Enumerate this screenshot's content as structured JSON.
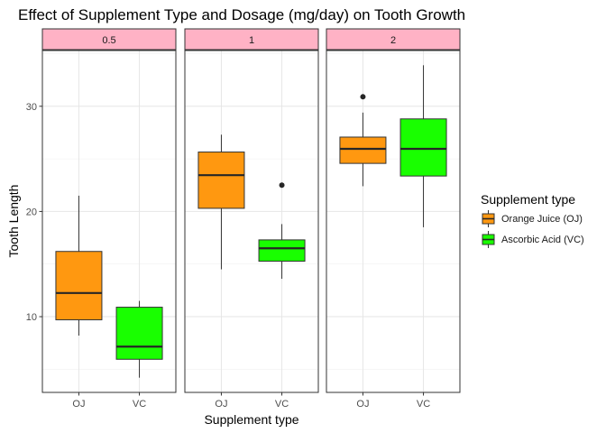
{
  "chart_data": {
    "type": "boxplot",
    "title": "Effect of Supplement Type and Dosage (mg/day) on Tooth Growth",
    "xlabel": "Supplement type",
    "ylabel": "Tooth Length",
    "facet_labels": [
      "0.5",
      "1",
      "2"
    ],
    "categories": [
      "OJ",
      "VC"
    ],
    "y_ticks": [
      10,
      20,
      30
    ],
    "ylim": [
      2.8,
      35.3
    ],
    "grid": true,
    "legend": {
      "title": "Supplement type",
      "placement": "right",
      "entries": [
        "Orange Juice (OJ)",
        "Ascorbic Acid (VC)"
      ]
    },
    "colors": {
      "OJ": "#FF9810",
      "VC": "#19FF00",
      "strip": "#FFB2C5"
    },
    "facets": [
      {
        "dose": "0.5",
        "boxes": [
          {
            "supp": "OJ",
            "min": 8.2,
            "q1": 9.7,
            "median": 12.25,
            "q3": 16.2,
            "max": 21.5,
            "outliers": []
          },
          {
            "supp": "VC",
            "min": 4.2,
            "q1": 5.95,
            "median": 7.15,
            "q3": 10.9,
            "max": 11.5,
            "outliers": []
          }
        ]
      },
      {
        "dose": "1",
        "boxes": [
          {
            "supp": "OJ",
            "min": 14.5,
            "q1": 20.3,
            "median": 23.45,
            "q3": 25.65,
            "max": 27.3,
            "outliers": []
          },
          {
            "supp": "VC",
            "min": 13.6,
            "q1": 15.27,
            "median": 16.5,
            "q3": 17.3,
            "max": 18.8,
            "outliers": [
              22.5
            ]
          }
        ]
      },
      {
        "dose": "2",
        "boxes": [
          {
            "supp": "OJ",
            "min": 22.4,
            "q1": 24.57,
            "median": 25.95,
            "q3": 27.07,
            "max": 29.4,
            "outliers": [
              30.9
            ]
          },
          {
            "supp": "VC",
            "min": 18.5,
            "q1": 23.37,
            "median": 25.95,
            "q3": 28.8,
            "max": 33.9,
            "outliers": []
          }
        ]
      }
    ]
  }
}
